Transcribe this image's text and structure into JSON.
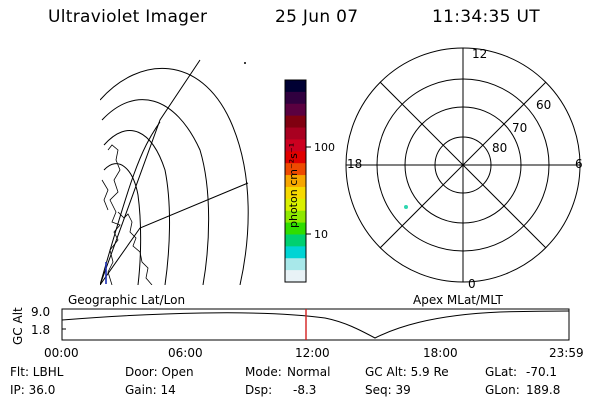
{
  "header": {
    "instrument": "Ultraviolet Imager",
    "date": "25 Jun 07",
    "time": "11:34:35 UT"
  },
  "colorbar": {
    "unit_label": "photon cm⁻²s⁻¹",
    "tick_labels": [
      "100",
      "10"
    ],
    "colors": [
      "#000033",
      "#30003f",
      "#5a0040",
      "#800010",
      "#a80020",
      "#cc0020",
      "#e00000",
      "#ee4a00",
      "#f7a600",
      "#f6d900",
      "#d9f000",
      "#8ee800",
      "#30dd00",
      "#00d070",
      "#00d4d4",
      "#a8e8ea",
      "#e8f2f6"
    ]
  },
  "polar_plot": {
    "mlt_labels": [
      "12",
      "18",
      "6",
      "0"
    ],
    "lat_labels": [
      "60",
      "70",
      "80"
    ]
  },
  "projection_labels": {
    "left": "Geographic Lat/Lon",
    "right": "Apex MLat/MLT"
  },
  "altitude_strip": {
    "axis_title": "GC Alt",
    "y_ticks": [
      "9.0",
      "1.8"
    ],
    "x_ticks": [
      "00:00",
      "06:00",
      "12:00",
      "18:00",
      "23:59"
    ]
  },
  "info": {
    "row1": {
      "filter": "Flt: LBHL",
      "door": "Door: Open",
      "mode_label": "Mode:",
      "mode_value": "Normal",
      "gc_alt": "GC Alt: 5.9 Re",
      "glat_label": "GLat:",
      "glat_value": "-70.1"
    },
    "row2": {
      "ip": "IP: 36.0",
      "gain": "Gain: 14",
      "dsp_label": "Dsp:",
      "dsp_value": "-8.3",
      "seq": "Seq: 39",
      "glon_label": "GLon:",
      "glon_value": "189.8"
    }
  }
}
